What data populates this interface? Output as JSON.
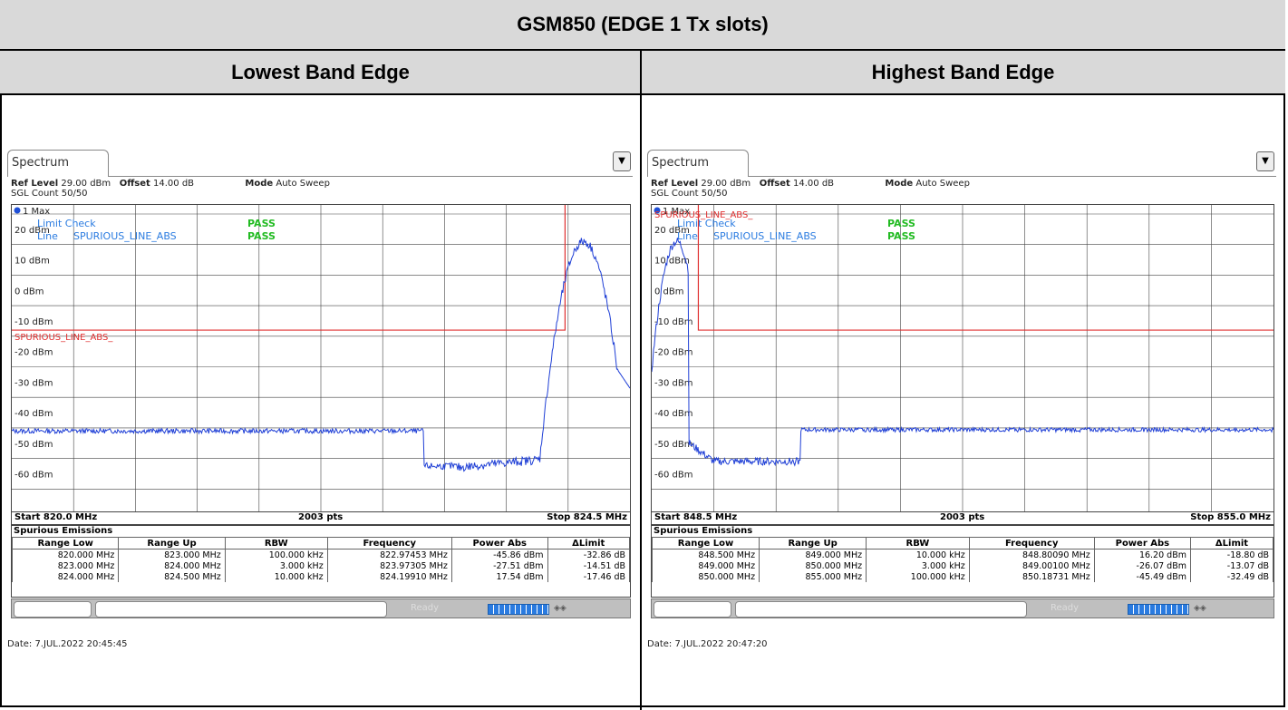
{
  "title": "GSM850 (EDGE 1 Tx slots)",
  "headers": {
    "left": "Lowest Band Edge",
    "right": "Highest Band Edge"
  },
  "panels": [
    {
      "tab": "Spectrum",
      "ref_level_label": "Ref Level",
      "ref_level": "29.00 dBm",
      "offset_label": "Offset",
      "offset": "14.00 dB",
      "mode_label": "Mode",
      "mode": "Auto Sweep",
      "sgl_count": "SGL Count 50/50",
      "trace": "1 Max",
      "limit_check": "Limit Check",
      "limit_check_result": "PASS",
      "line_label": "Line",
      "line_name": "SPURIOUS_LINE_ABS",
      "line_result": "PASS",
      "limit_tag": "SPURIOUS_LINE_ABS_",
      "y_ticks": [
        "20 dBm",
        "10 dBm",
        "0 dBm",
        "-10 dBm",
        "-20 dBm",
        "-30 dBm",
        "-40 dBm",
        "-50 dBm",
        "-60 dBm"
      ],
      "start": "Start 820.0 MHz",
      "pts": "2003 pts",
      "stop": "Stop 824.5 MHz",
      "spur_title": "Spurious Emissions",
      "columns": [
        "Range Low",
        "Range Up",
        "RBW",
        "Frequency",
        "Power Abs",
        "ΔLimit"
      ],
      "rows": [
        [
          "820.000 MHz",
          "823.000 MHz",
          "100.000 kHz",
          "822.97453 MHz",
          "-45.86 dBm",
          "-32.86 dB"
        ],
        [
          "823.000 MHz",
          "824.000 MHz",
          "3.000 kHz",
          "823.97305 MHz",
          "-27.51 dBm",
          "-14.51 dB"
        ],
        [
          "824.000 MHz",
          "824.500 MHz",
          "10.000 kHz",
          "824.19910 MHz",
          "17.54 dBm",
          "-17.46 dB"
        ]
      ],
      "status_text": "Ready",
      "date": "Date: 7.JUL.2022  20:45:45"
    },
    {
      "tab": "Spectrum",
      "ref_level_label": "Ref Level",
      "ref_level": "29.00 dBm",
      "offset_label": "Offset",
      "offset": "14.00 dB",
      "mode_label": "Mode",
      "mode": "Auto Sweep",
      "sgl_count": "SGL Count 50/50",
      "trace": "1 Max",
      "limit_check": "Limit Check",
      "limit_check_result": "PASS",
      "line_label": "Line",
      "line_name": "SPURIOUS_LINE_ABS",
      "line_result": "PASS",
      "limit_tag": "SPURIOUS_LINE_ABS_",
      "y_ticks": [
        "20 dBm",
        "10 dBm",
        "0 dBm",
        "-10 dBm",
        "-20 dBm",
        "-30 dBm",
        "-40 dBm",
        "-50 dBm",
        "-60 dBm"
      ],
      "start": "Start 848.5 MHz",
      "pts": "2003 pts",
      "stop": "Stop 855.0 MHz",
      "spur_title": "Spurious Emissions",
      "columns": [
        "Range Low",
        "Range Up",
        "RBW",
        "Frequency",
        "Power Abs",
        "ΔLimit"
      ],
      "rows": [
        [
          "848.500 MHz",
          "849.000 MHz",
          "10.000 kHz",
          "848.80090 MHz",
          "16.20 dBm",
          "-18.80 dB"
        ],
        [
          "849.000 MHz",
          "850.000 MHz",
          "3.000 kHz",
          "849.00100 MHz",
          "-26.07 dBm",
          "-13.07 dB"
        ],
        [
          "850.000 MHz",
          "855.000 MHz",
          "100.000 kHz",
          "850.18731 MHz",
          "-45.49 dBm",
          "-32.49 dB"
        ]
      ],
      "status_text": "Ready",
      "date": "Date: 7.JUL.2022  20:47:20"
    }
  ],
  "colors": {
    "trace": "#1f3fd6",
    "limit": "#e03030",
    "grid": "#444444",
    "pass": "#22bb22",
    "info_blue": "#2a7be0"
  }
}
